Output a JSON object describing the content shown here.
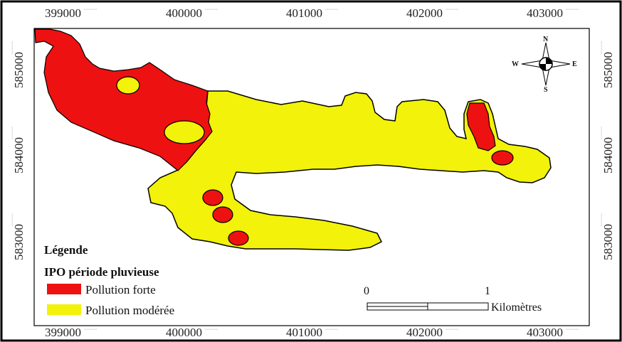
{
  "axes": {
    "x_ticks": [
      "399000",
      "400000",
      "401000",
      "402000",
      "403000"
    ],
    "y_ticks": [
      "585000",
      "584000",
      "583000"
    ],
    "tick_suffix": "°°°°°°°°"
  },
  "legend": {
    "heading": "Légende",
    "title": "IPO période pluvieuse",
    "items": [
      {
        "label": "Pollution forte",
        "color": "#ee1111"
      },
      {
        "label": "Pollution modérée",
        "color": "#f2f20a"
      }
    ]
  },
  "compass": {
    "n": "N",
    "s": "S",
    "e": "E",
    "w": "W"
  },
  "scale": {
    "start": "0",
    "end": "1",
    "unit": "Kilomètres"
  },
  "colors": {
    "strong": "#ee1111",
    "moderate": "#f2f20a",
    "outline": "#000000"
  }
}
